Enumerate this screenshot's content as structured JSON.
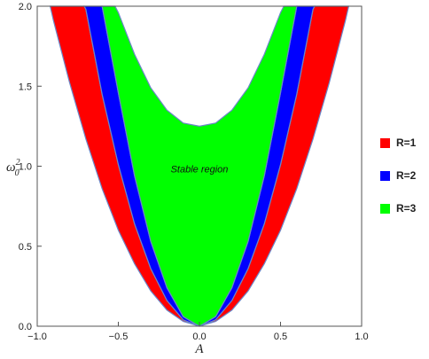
{
  "chart_data": {
    "type": "area",
    "title": "",
    "xlabel": "A",
    "ylabel_base": "ω",
    "ylabel_sub": "0",
    "ylabel_sup": "2",
    "xlim": [
      -1.0,
      1.0
    ],
    "ylim": [
      0.0,
      2.0
    ],
    "x_ticks": [
      "-1.0",
      "-0.5",
      "0.0",
      "0.5",
      "1.0"
    ],
    "y_ticks": [
      "0.0",
      "0.5",
      "1.0",
      "1.5",
      "2.0"
    ],
    "grid": false,
    "legend_position": "right",
    "annotation": {
      "text": "Stable region",
      "x": 0.0,
      "y": 0.96
    },
    "series": [
      {
        "name": "R=1",
        "color": "#ff0000",
        "lower_boundary": [
          [
            0.0,
            0.0
          ],
          [
            0.1,
            0.03
          ],
          [
            0.2,
            0.1
          ],
          [
            0.3,
            0.22
          ],
          [
            0.4,
            0.39
          ],
          [
            0.5,
            0.6
          ],
          [
            0.6,
            0.86
          ],
          [
            0.7,
            1.17
          ],
          [
            0.8,
            1.52
          ],
          [
            0.9,
            1.91
          ],
          [
            0.92,
            2.0
          ]
        ],
        "upper_boundary": [
          [
            0.0,
            0.0
          ],
          [
            0.1,
            0.04
          ],
          [
            0.2,
            0.16
          ],
          [
            0.3,
            0.36
          ],
          [
            0.4,
            0.64
          ],
          [
            0.5,
            1.01
          ],
          [
            0.6,
            1.45
          ],
          [
            0.7,
            1.98
          ],
          [
            0.71,
            2.0
          ]
        ]
      },
      {
        "name": "R=2",
        "color": "#0000ff",
        "lower_boundary": [
          [
            0.0,
            0.0
          ],
          [
            0.1,
            0.04
          ],
          [
            0.2,
            0.16
          ],
          [
            0.3,
            0.36
          ],
          [
            0.4,
            0.64
          ],
          [
            0.5,
            1.01
          ],
          [
            0.6,
            1.45
          ],
          [
            0.7,
            1.98
          ],
          [
            0.71,
            2.0
          ]
        ],
        "upper_boundary": [
          [
            0.0,
            0.0
          ],
          [
            0.1,
            0.06
          ],
          [
            0.2,
            0.24
          ],
          [
            0.3,
            0.53
          ],
          [
            0.4,
            0.94
          ],
          [
            0.5,
            1.46
          ],
          [
            0.6,
            2.0
          ]
        ]
      },
      {
        "name": "R=3",
        "color": "#00ff00",
        "lower_boundary": [
          [
            0.0,
            0.0
          ],
          [
            0.1,
            0.06
          ],
          [
            0.2,
            0.24
          ],
          [
            0.3,
            0.53
          ],
          [
            0.4,
            0.94
          ],
          [
            0.5,
            1.46
          ],
          [
            0.6,
            2.0
          ]
        ],
        "upper_boundary": [
          [
            0.0,
            1.25
          ],
          [
            0.1,
            1.27
          ],
          [
            0.2,
            1.35
          ],
          [
            0.3,
            1.49
          ],
          [
            0.4,
            1.7
          ],
          [
            0.5,
            1.96
          ],
          [
            0.52,
            2.0
          ]
        ]
      }
    ]
  }
}
